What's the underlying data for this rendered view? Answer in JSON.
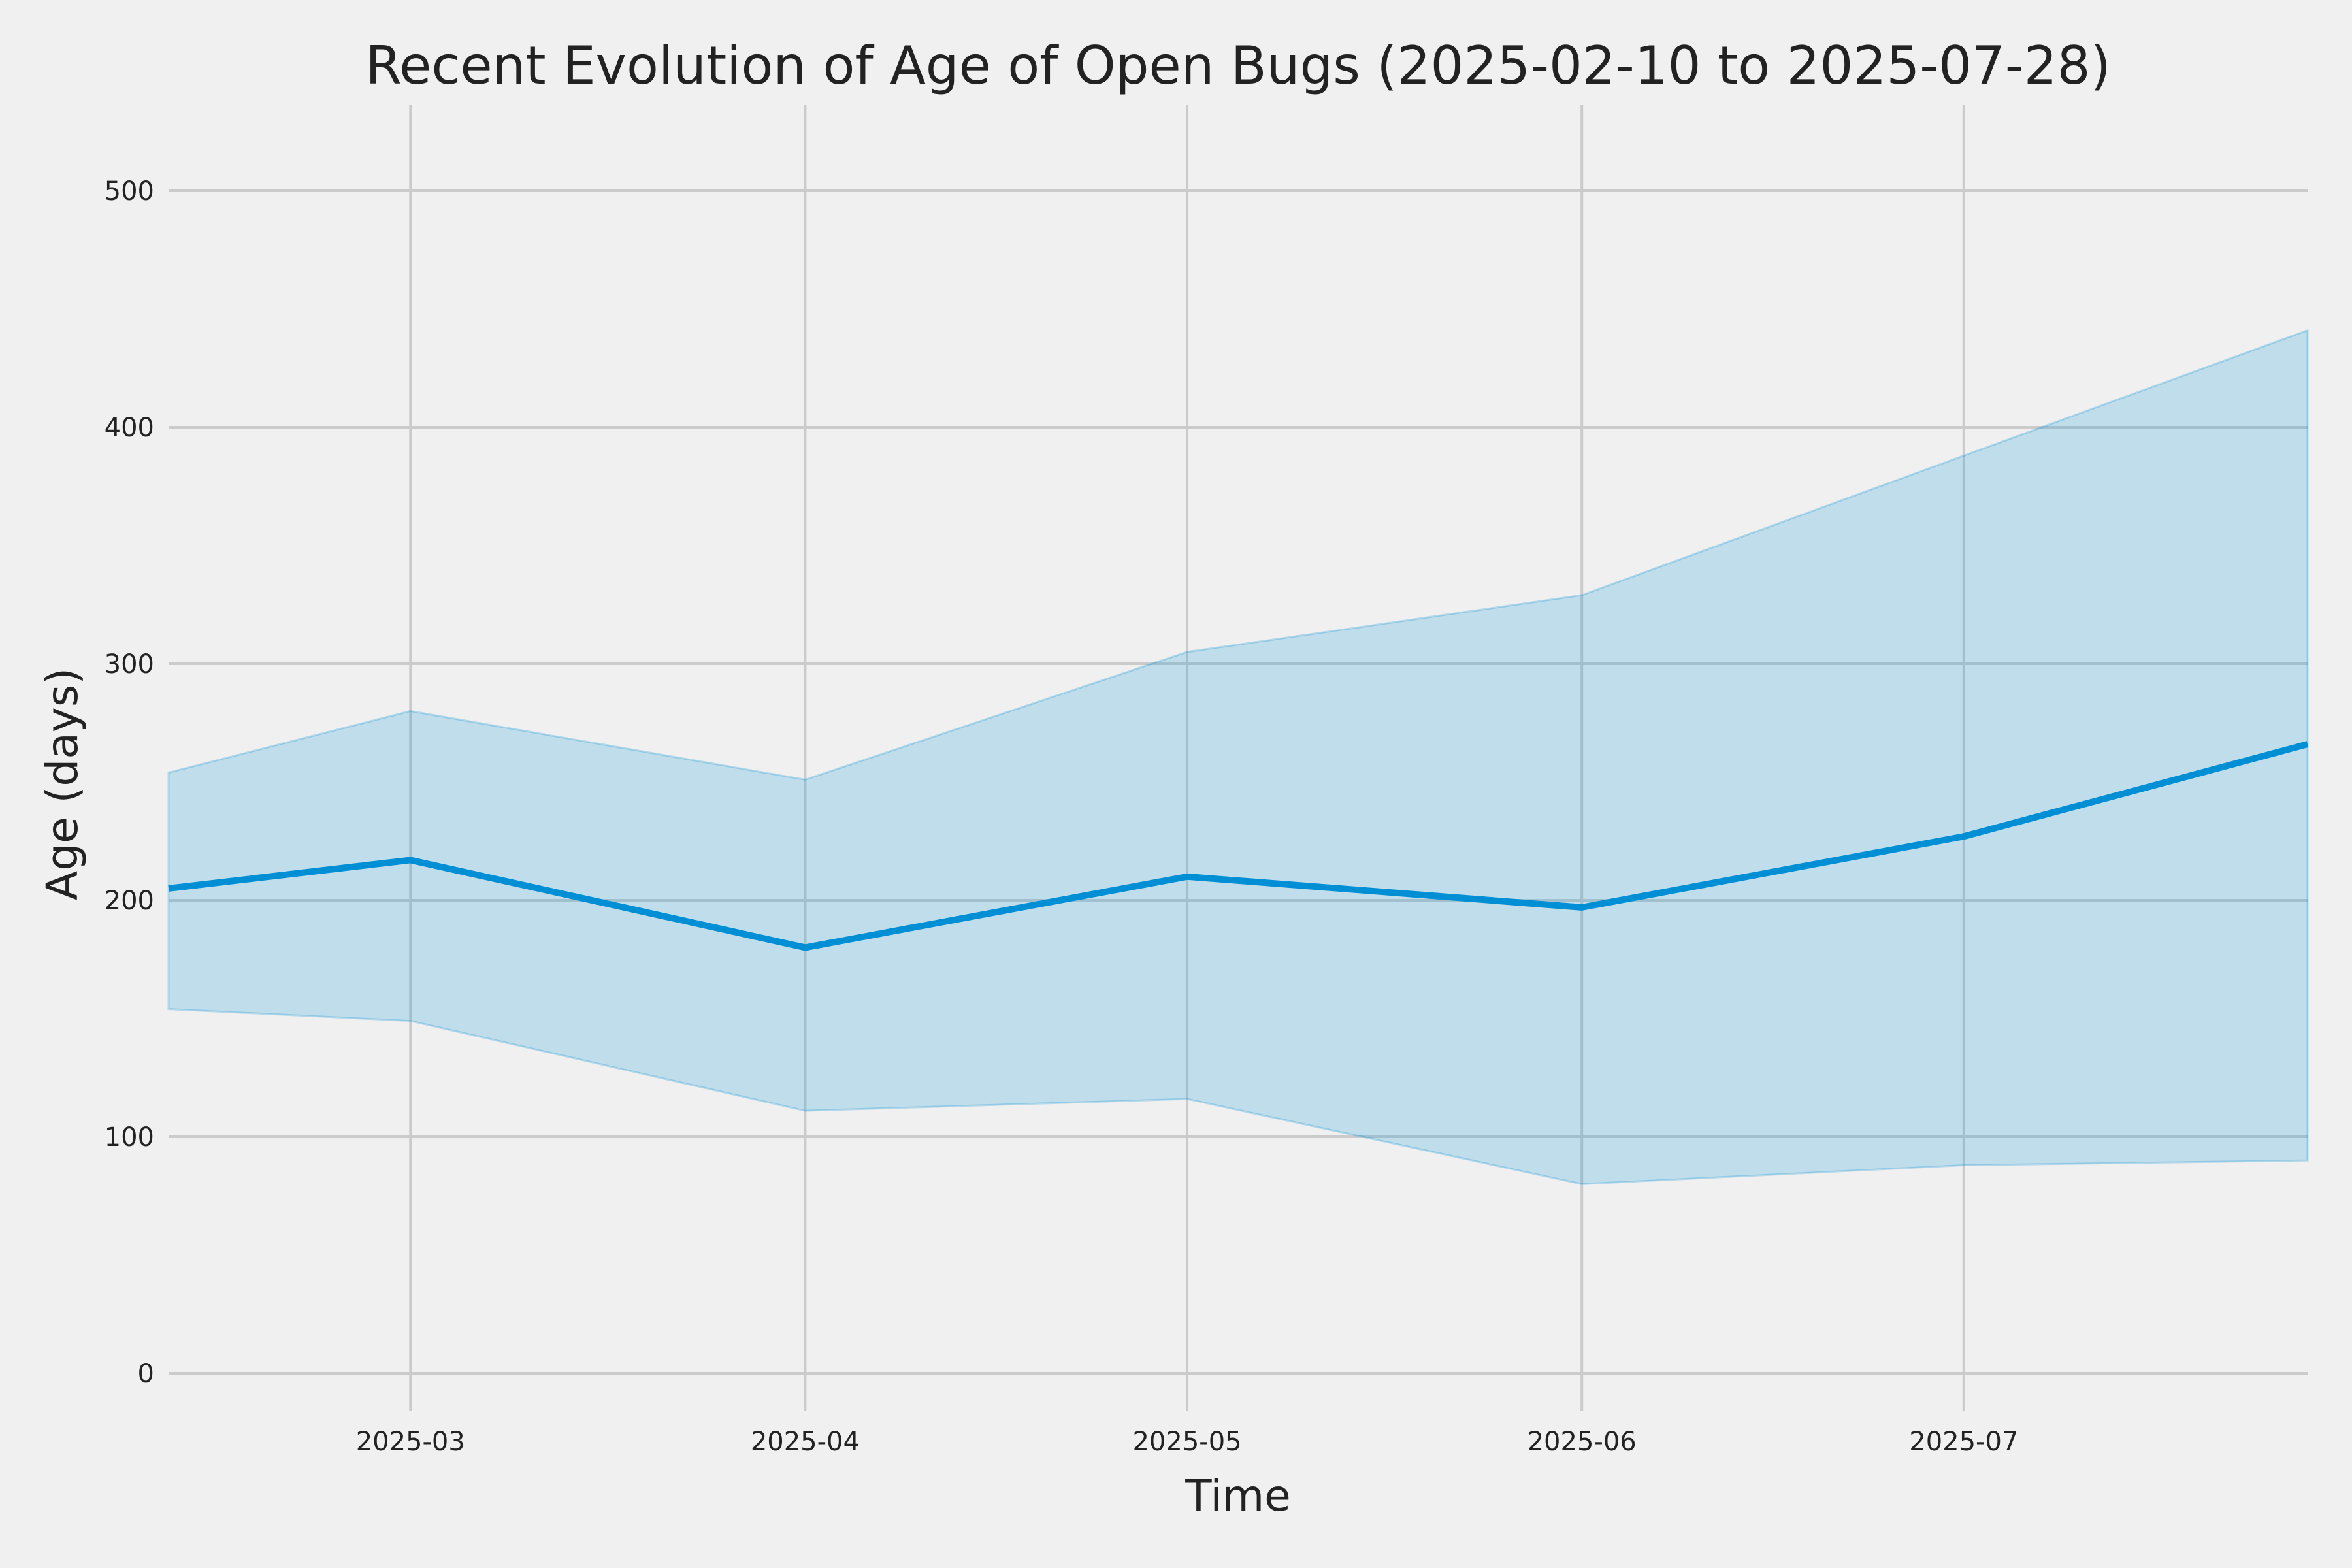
{
  "chart_data": {
    "type": "area",
    "title": "Recent Evolution of Age of Open Bugs (2025-02-10 to 2025-07-28)",
    "xlabel": "Time",
    "ylabel": "Age (days)",
    "xlim": [
      "2025-02-10",
      "2025-07-28"
    ],
    "ylim": [
      0,
      535
    ],
    "x_ticks": [
      {
        "value": "2025-03-01",
        "label": "2025-03"
      },
      {
        "value": "2025-04-01",
        "label": "2025-04"
      },
      {
        "value": "2025-05-01",
        "label": "2025-05"
      },
      {
        "value": "2025-06-01",
        "label": "2025-06"
      },
      {
        "value": "2025-07-01",
        "label": "2025-07"
      }
    ],
    "y_ticks": [
      {
        "value": 0,
        "label": "0"
      },
      {
        "value": 100,
        "label": "100"
      },
      {
        "value": 200,
        "label": "200"
      },
      {
        "value": 300,
        "label": "300"
      },
      {
        "value": 400,
        "label": "400"
      },
      {
        "value": 500,
        "label": "500"
      }
    ],
    "grid": true,
    "x": [
      "2025-02-10",
      "2025-03-01",
      "2025-04-01",
      "2025-05-01",
      "2025-06-01",
      "2025-07-01",
      "2025-07-28"
    ],
    "series": [
      {
        "values": [
          205,
          217,
          180,
          210,
          197,
          227,
          266
        ],
        "lower": [
          154,
          149,
          111,
          116,
          80,
          88,
          90
        ],
        "upper": [
          254,
          280,
          251,
          305,
          329,
          388,
          441
        ]
      }
    ],
    "colors": {
      "line": "#008fd5",
      "band": "#008fd5",
      "band_opacity": 0.2,
      "grid": "#cbcbcb",
      "background": "#f0f0f0",
      "text": "#222222"
    }
  }
}
